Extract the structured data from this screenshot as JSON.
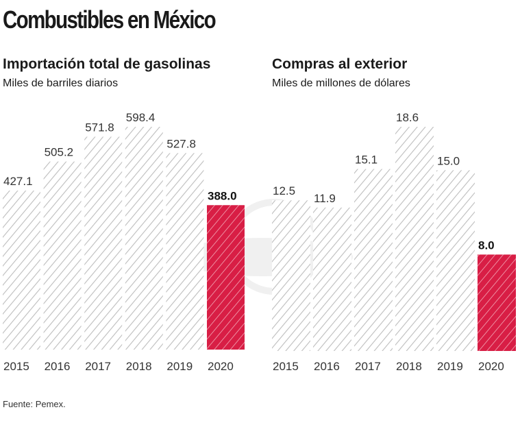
{
  "title": "Combustibles en México",
  "source": "Fuente: Pemex.",
  "colors": {
    "bar": "#c8c8c8",
    "highlight": "#d81e45"
  },
  "chart_data": [
    {
      "type": "bar",
      "title": "Importación total de gasolinas",
      "subtitle": "Miles de barriles diarios",
      "categories": [
        "2015",
        "2016",
        "2017",
        "2018",
        "2019",
        "2020"
      ],
      "values": [
        427.1,
        505.2,
        571.8,
        598.4,
        527.8,
        388.0
      ],
      "labels": [
        "427.1",
        "505.2",
        "571.8",
        "598.4",
        "527.8",
        "388.0"
      ],
      "highlight": "2020",
      "grid": false
    },
    {
      "type": "bar",
      "title": "Compras al exterior",
      "subtitle": "Miles de millones de dólares",
      "categories": [
        "2015",
        "2016",
        "2017",
        "2018",
        "2019",
        "2020"
      ],
      "values": [
        12.5,
        11.9,
        15.1,
        18.6,
        15.0,
        8.0
      ],
      "labels": [
        "12.5",
        "11.9",
        "15.1",
        "18.6",
        "15.0",
        "8.0"
      ],
      "highlight": "2020",
      "grid": false
    }
  ]
}
